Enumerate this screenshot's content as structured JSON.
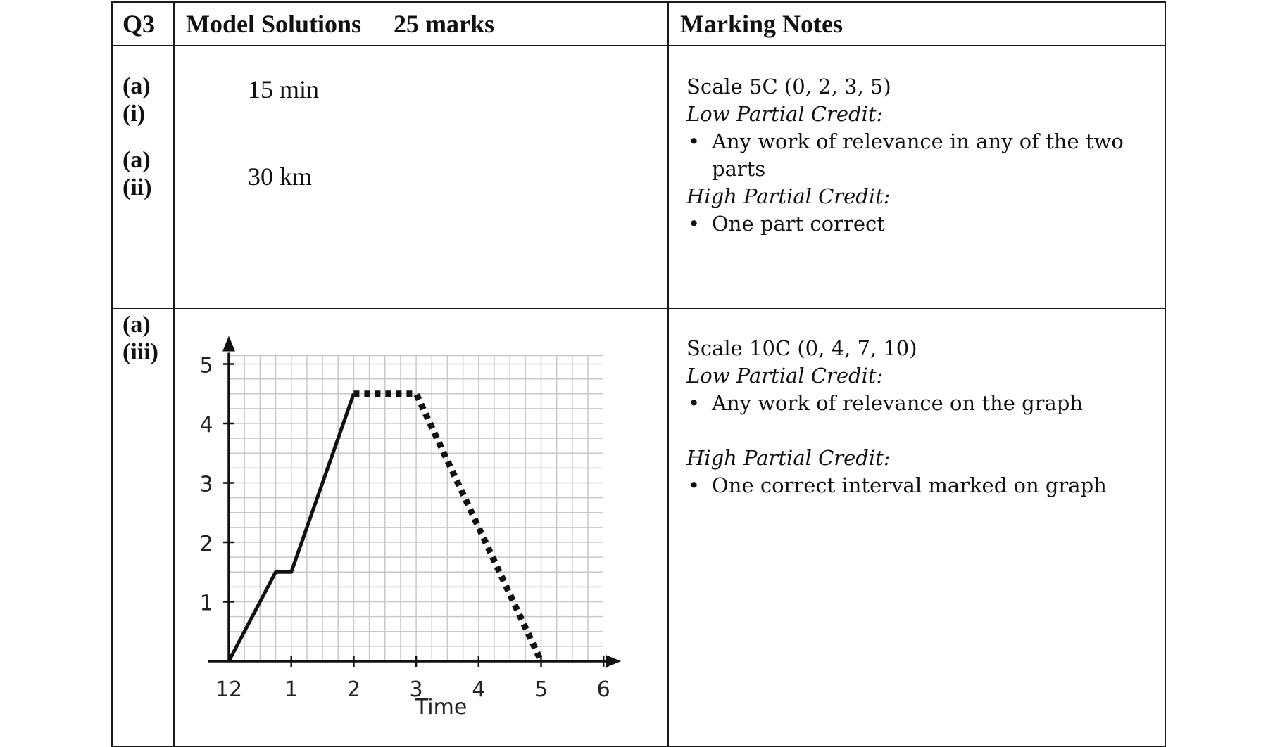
{
  "header": {
    "q": "Q3",
    "model_solutions": "Model Solutions",
    "marks": "25 marks",
    "marking_notes": "Marking Notes"
  },
  "part_a": {
    "label_i_a": "(a)",
    "label_i_b": "(i)",
    "label_ii_a": "(a)",
    "label_ii_b": "(ii)",
    "answer_i": "15 min",
    "answer_ii": "30 km",
    "scale": "Scale 5C (0, 2, 3, 5)",
    "low_title": "Low Partial Credit:",
    "low_item": "Any work of relevance in any of the two parts",
    "high_title": "High Partial Credit:",
    "high_item": "One part correct"
  },
  "part_iii": {
    "label_a": "(a)",
    "label_b": "(iii)",
    "scale": "Scale 10C (0, 4, 7, 10)",
    "low_title": "Low Partial Credit:",
    "low_item": "Any work of relevance on the graph",
    "high_title": "High Partial Credit:",
    "high_item": "One correct interval marked on graph"
  },
  "chart_data": {
    "type": "line",
    "xlabel": "Time",
    "ylabel": "",
    "x_tick_labels": [
      "12",
      "1",
      "2",
      "3",
      "4",
      "5",
      "6"
    ],
    "y_tick_labels": [
      "1",
      "2",
      "3",
      "4",
      "5"
    ],
    "xlim": [
      0,
      6
    ],
    "ylim": [
      0,
      5
    ],
    "grid": true,
    "series": [
      {
        "style": "solid",
        "x": [
          0,
          0.75,
          1,
          2
        ],
        "y": [
          0,
          1.5,
          1.5,
          4.5
        ]
      },
      {
        "style": "dotted",
        "x": [
          2,
          3,
          5
        ],
        "y": [
          4.5,
          4.5,
          0
        ]
      }
    ]
  }
}
